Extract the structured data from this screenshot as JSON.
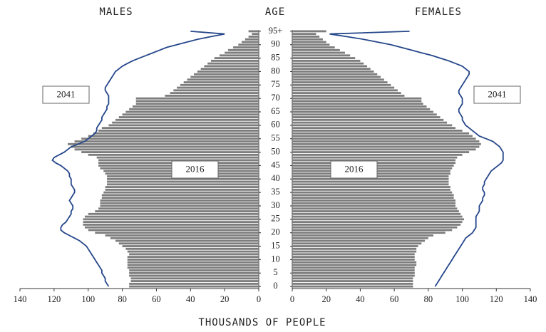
{
  "chart_data": {
    "type": "pyramid",
    "left_title": "MALES",
    "center_title": "AGE",
    "right_title": "FEMALES",
    "xlabel": "THOUSANDS OF PEOPLE",
    "xlim": [
      0,
      140
    ],
    "xticks": [
      0,
      20,
      40,
      60,
      80,
      100,
      120,
      140
    ],
    "ylim": [
      -0.5,
      95.5
    ],
    "yticks": [
      0,
      5,
      10,
      15,
      20,
      25,
      30,
      35,
      40,
      45,
      50,
      55,
      60,
      65,
      70,
      75,
      80,
      85,
      90,
      {
        "value": 95,
        "label": "95+"
      }
    ],
    "ages": [
      0,
      1,
      2,
      3,
      4,
      5,
      6,
      7,
      8,
      9,
      10,
      11,
      12,
      13,
      14,
      15,
      16,
      17,
      18,
      19,
      20,
      21,
      22,
      23,
      24,
      25,
      26,
      27,
      28,
      29,
      30,
      31,
      32,
      33,
      34,
      35,
      36,
      37,
      38,
      39,
      40,
      41,
      42,
      43,
      44,
      45,
      46,
      47,
      48,
      49,
      50,
      51,
      52,
      53,
      54,
      55,
      56,
      57,
      58,
      59,
      60,
      61,
      62,
      63,
      64,
      65,
      66,
      67,
      68,
      69,
      70,
      71,
      72,
      73,
      74,
      75,
      76,
      77,
      78,
      79,
      80,
      81,
      82,
      83,
      84,
      85,
      86,
      87,
      88,
      89,
      90,
      91,
      92,
      93,
      94,
      95
    ],
    "left": {
      "series": [
        {
          "name": "2016",
          "style": "bar",
          "color": "#7d7d7d",
          "values": [
            76,
            76,
            75,
            75,
            76,
            76,
            76,
            77,
            77,
            77,
            77,
            77,
            76,
            77,
            78,
            80,
            82,
            84,
            87,
            90,
            96,
            100,
            102,
            103,
            103,
            103,
            102,
            100,
            96,
            94,
            93,
            93,
            93,
            92,
            92,
            91,
            90,
            90,
            89,
            89,
            89,
            89,
            90,
            91,
            93,
            94,
            94,
            94,
            95,
            100,
            104,
            108,
            110,
            112,
            108,
            104,
            100,
            97,
            94,
            92,
            88,
            86,
            84,
            82,
            80,
            78,
            76,
            74,
            72,
            72,
            72,
            55,
            52,
            50,
            48,
            46,
            44,
            42,
            40,
            38,
            36,
            34,
            32,
            30,
            28,
            26,
            23,
            20,
            18,
            15,
            12,
            10,
            8,
            6,
            4,
            6
          ]
        },
        {
          "name": "2041",
          "style": "line",
          "color": "#25468a",
          "values": [
            88,
            89,
            90,
            90,
            91,
            92,
            92,
            93,
            94,
            95,
            96,
            97,
            98,
            99,
            100,
            101,
            103,
            105,
            108,
            111,
            114,
            116,
            116,
            115,
            113,
            112,
            111,
            110,
            110,
            109,
            109,
            110,
            111,
            110,
            109,
            108,
            108,
            109,
            110,
            110,
            110,
            111,
            111,
            112,
            114,
            116,
            119,
            121,
            120,
            117,
            114,
            112,
            110,
            106,
            102,
            100,
            98,
            96,
            95,
            95,
            94,
            93,
            92,
            92,
            91,
            90,
            89,
            89,
            88,
            88,
            88,
            88,
            89,
            90,
            90,
            89,
            88,
            87,
            86,
            85,
            84,
            82,
            80,
            77,
            74,
            70,
            66,
            62,
            58,
            54,
            48,
            42,
            36,
            28,
            20,
            40
          ]
        }
      ]
    },
    "right": {
      "series": [
        {
          "name": "2016",
          "style": "bar",
          "color": "#7d7d7d",
          "values": [
            71,
            71,
            71,
            71,
            72,
            72,
            72,
            72,
            73,
            73,
            72,
            72,
            72,
            73,
            73,
            74,
            76,
            78,
            80,
            83,
            90,
            94,
            97,
            99,
            100,
            101,
            100,
            99,
            98,
            97,
            96,
            96,
            96,
            95,
            95,
            94,
            93,
            93,
            92,
            92,
            92,
            92,
            93,
            93,
            94,
            95,
            96,
            96,
            97,
            100,
            104,
            108,
            110,
            111,
            110,
            108,
            106,
            104,
            100,
            96,
            94,
            91,
            89,
            87,
            85,
            83,
            81,
            79,
            77,
            76,
            76,
            66,
            64,
            62,
            60,
            58,
            56,
            54,
            52,
            50,
            48,
            46,
            44,
            42,
            40,
            37,
            34,
            31,
            28,
            25,
            22,
            20,
            18,
            16,
            14,
            20
          ]
        },
        {
          "name": "2041",
          "style": "line",
          "color": "#25468a",
          "values": [
            84,
            85,
            86,
            87,
            88,
            89,
            90,
            91,
            92,
            93,
            94,
            95,
            96,
            97,
            98,
            99,
            100,
            101,
            102,
            104,
            106,
            107,
            108,
            108,
            108,
            108,
            108,
            109,
            110,
            110,
            110,
            111,
            112,
            112,
            113,
            113,
            112,
            112,
            113,
            113,
            114,
            115,
            116,
            117,
            119,
            121,
            123,
            124,
            124,
            124,
            124,
            123,
            122,
            120,
            118,
            114,
            110,
            108,
            106,
            104,
            102,
            101,
            100,
            100,
            99,
            98,
            98,
            99,
            100,
            100,
            100,
            99,
            98,
            98,
            99,
            100,
            101,
            102,
            103,
            104,
            104,
            102,
            100,
            96,
            92,
            87,
            82,
            76,
            70,
            64,
            58,
            50,
            42,
            32,
            22,
            69
          ]
        }
      ]
    }
  }
}
